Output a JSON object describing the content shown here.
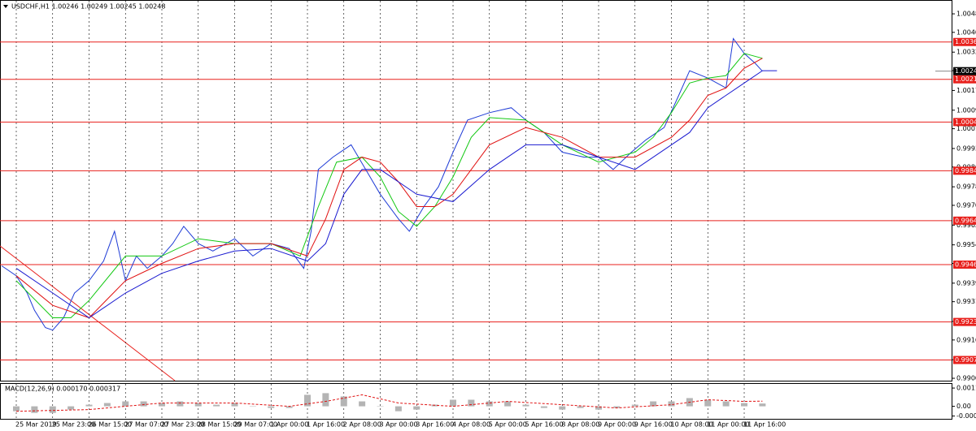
{
  "chart_data": [
    {
      "type": "line",
      "title": "USDCHF,H1  1.00246 1.00249 1.00245 1.00248",
      "xlim": [
        -0.447,
        25.698
      ],
      "ylim": [
        0.98992,
        1.00536
      ],
      "xticks": [
        {
          "value": 0,
          "label": "25 Mar 2019"
        },
        {
          "value": 1,
          "label": "25 Mar 23:00"
        },
        {
          "value": 2,
          "label": "26 Mar 15:00"
        },
        {
          "value": 3,
          "label": "27 Mar 07:00"
        },
        {
          "value": 4,
          "label": "27 Mar 23:00"
        },
        {
          "value": 5,
          "label": "28 Mar 15:00"
        },
        {
          "value": 6,
          "label": "29 Mar 07:00"
        },
        {
          "value": 7,
          "label": "1 Apr 00:00"
        },
        {
          "value": 8,
          "label": "1 Apr 16:00"
        },
        {
          "value": 9,
          "label": "2 Apr 08:00"
        },
        {
          "value": 10,
          "label": "3 Apr 00:00"
        },
        {
          "value": 11,
          "label": "3 Apr 16:00"
        },
        {
          "value": 12,
          "label": "4 Apr 08:00"
        },
        {
          "value": 13,
          "label": "5 Apr 00:00"
        },
        {
          "value": 14,
          "label": "5 Apr 16:00"
        },
        {
          "value": 15,
          "label": "8 Apr 08:00"
        },
        {
          "value": 16,
          "label": "9 Apr 00:00"
        },
        {
          "value": 17,
          "label": "9 Apr 16:00"
        },
        {
          "value": 18,
          "label": "10 Apr 08:00"
        },
        {
          "value": 19,
          "label": "11 Apr 00:00"
        },
        {
          "value": 20,
          "label": "11 Apr 16:00"
        }
      ],
      "yticks": [
        {
          "value": 1.0048,
          "label": "1.00480"
        },
        1.00405,
        1.00325,
        {
          "value": 1.0025,
          "label": "1.00250"
        },
        {
          "value": 1.0017,
          "label": "1.00170"
        },
        {
          "value": 1.0009,
          "label": "1.00090"
        },
        1.00015,
        0.99935,
        {
          "value": 0.9986,
          "label": "0.99860"
        },
        {
          "value": 0.9978,
          "label": "0.99780"
        },
        0.99705,
        0.99625,
        0.99545,
        {
          "value": 0.9947,
          "label": "0.99470"
        },
        {
          "value": 0.9939,
          "label": "0.99390"
        },
        0.99315,
        0.99235,
        {
          "value": 0.9916,
          "label": "0.99160"
        },
        {
          "value": 0.9908,
          "label": "0.99080"
        },
        0.99005
      ],
      "series": [
        {
          "color": "#1e3bd6",
          "x": [
            -0.4,
            0,
            0.3,
            0.5,
            0.8,
            1.0,
            1.3,
            1.6,
            2.0,
            2.4,
            2.7,
            3.0,
            3.3,
            3.6,
            4.0,
            4.3,
            4.6,
            5.0,
            5.4,
            6.0,
            6.5,
            7.0,
            7.5,
            7.9,
            8.1,
            8.3,
            8.7,
            9.2,
            9.6,
            10.0,
            10.5,
            10.8,
            11.2,
            11.6,
            12.0,
            12.4,
            13.0,
            13.6,
            14.0,
            14.5,
            15.0,
            15.6,
            16.0,
            16.4,
            16.9,
            17.3,
            17.8,
            18.2,
            18.5,
            19.0,
            19.5,
            19.7,
            20.0,
            20.3,
            20.5
          ],
          "values": [
            0.9946,
            0.9942,
            0.9935,
            0.9928,
            0.9921,
            0.992,
            0.9925,
            0.9935,
            0.994,
            0.9948,
            0.996,
            0.994,
            0.995,
            0.9945,
            0.995,
            0.9955,
            0.9962,
            0.9955,
            0.9952,
            0.9957,
            0.995,
            0.9955,
            0.9953,
            0.9945,
            0.996,
            0.9985,
            0.999,
            0.9995,
            0.9985,
            0.9975,
            0.9965,
            0.996,
            0.997,
            0.9978,
            0.9992,
            1.0005,
            1.0008,
            1.001,
            1.0005,
            1.0,
            0.9992,
            0.999,
            0.999,
            0.9985,
            0.9992,
            0.9997,
            1.0002,
            1.0015,
            1.0025,
            1.0022,
            1.0018,
            1.0038,
            1.0032,
            1.0028,
            1.00248
          ]
        },
        {
          "color": "#12c812",
          "x": [
            0,
            1,
            1.5,
            2,
            3,
            4,
            5,
            6,
            7,
            7.8,
            8.3,
            8.8,
            9.5,
            10,
            10.5,
            11,
            11.5,
            12,
            12.5,
            13,
            14,
            15,
            16,
            17,
            17.5,
            18,
            18.5,
            19,
            19.5,
            20,
            20.5
          ],
          "values": [
            0.994,
            0.9925,
            0.9925,
            0.9932,
            0.995,
            0.995,
            0.9957,
            0.9955,
            0.9955,
            0.995,
            0.997,
            0.9988,
            0.999,
            0.9982,
            0.9968,
            0.9962,
            0.997,
            0.9982,
            0.9998,
            1.0006,
            1.0005,
            0.9995,
            0.9988,
            0.9992,
            0.9998,
            1.0008,
            1.002,
            1.0022,
            1.0023,
            1.0032,
            1.003
          ]
        },
        {
          "color": "#e01010",
          "x": [
            0,
            1,
            2,
            3,
            4,
            5,
            6,
            7,
            8,
            8.5,
            9,
            9.5,
            10,
            10.5,
            11,
            11.5,
            12,
            13,
            14,
            15,
            16,
            17,
            18,
            18.5,
            19,
            19.5,
            20,
            20.5
          ],
          "values": [
            0.9942,
            0.993,
            0.9925,
            0.994,
            0.9947,
            0.9953,
            0.9955,
            0.9955,
            0.995,
            0.9965,
            0.9985,
            0.999,
            0.9988,
            0.998,
            0.997,
            0.997,
            0.9975,
            0.9995,
            1.0002,
            0.9998,
            0.999,
            0.999,
            0.9998,
            1.0005,
            1.0015,
            1.0018,
            1.0026,
            1.003
          ]
        },
        {
          "color": "#1a1ad0",
          "x": [
            0,
            1,
            2,
            3,
            4,
            5,
            6,
            7,
            8,
            8.5,
            9,
            9.5,
            10,
            11,
            12,
            13,
            14,
            15,
            16,
            17,
            18,
            18.5,
            19,
            19.5,
            20,
            20.5,
            20.9
          ],
          "values": [
            0.9945,
            0.9935,
            0.9925,
            0.9935,
            0.9943,
            0.9948,
            0.9952,
            0.9953,
            0.9948,
            0.9955,
            0.9975,
            0.9985,
            0.9985,
            0.9975,
            0.9972,
            0.9985,
            0.9995,
            0.9995,
            0.999,
            0.9985,
            0.9995,
            1.0,
            1.001,
            1.0015,
            1.002,
            1.0025,
            1.0025
          ]
        }
      ],
      "levels": [
        1.00366,
        1.00215,
        1.00042,
        0.99845,
        0.99643,
        0.99465,
        0.99233,
        0.99079
      ],
      "level_color": "#e8201c",
      "last_price": 1.00248
    },
    {
      "type": "bar",
      "title": "MACD(12,26,9) 0.000170 0.000317",
      "ylim": [
        -0.00081,
        0.00141
      ],
      "yticks": [
        0.00111,
        {
          "value": 0,
          "label": "0.00"
        },
        -0.00059
      ],
      "x": [
        0,
        0.5,
        1,
        1.5,
        2,
        2.5,
        3,
        3.5,
        4,
        4.5,
        5,
        5.5,
        6,
        6.5,
        7,
        7.5,
        8,
        8.5,
        9,
        9.5,
        10,
        10.5,
        11,
        11.5,
        12,
        12.5,
        13,
        13.5,
        14,
        14.5,
        15,
        15.5,
        16,
        16.5,
        17,
        17.5,
        18,
        18.5,
        19,
        19.5,
        20,
        20.5
      ],
      "values": [
        -0.0003,
        -0.0004,
        -0.0004,
        -0.0002,
        0.0001,
        0.0002,
        0.0003,
        0.0003,
        0.0002,
        0.0003,
        0.0002,
        0.0001,
        0.0002,
        0,
        -0.0001,
        -0.0001,
        0.0007,
        0.0008,
        0.0006,
        0.0003,
        0,
        -0.0003,
        -0.0002,
        0.0001,
        0.0004,
        0.0004,
        0.0003,
        0.0003,
        0.0001,
        -0.0001,
        -0.0002,
        -0.0001,
        -0.0002,
        -0.0001,
        0.0001,
        0.0003,
        0.0003,
        0.0005,
        0.0004,
        0.0003,
        0.0002,
        0.00017
      ],
      "color": "#b4b4b4",
      "signal": {
        "color": "#e01010",
        "x": [
          0,
          2,
          4,
          6,
          7.5,
          8.5,
          9.5,
          10.5,
          12,
          13.5,
          15,
          16.5,
          18,
          19,
          20,
          20.5
        ],
        "values": [
          -0.0003,
          -0.0002,
          0.0002,
          0.0002,
          0,
          0.0003,
          0.0007,
          0.0002,
          0,
          0.0003,
          0.0001,
          -0.0001,
          0.0001,
          0.0004,
          0.0003,
          0.000317
        ]
      }
    }
  ]
}
